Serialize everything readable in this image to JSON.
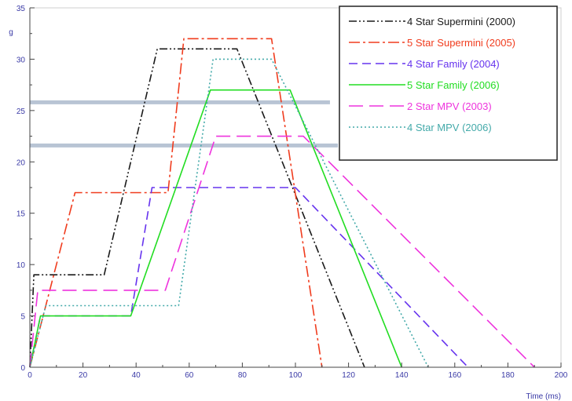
{
  "chart_data": {
    "type": "line",
    "title": "",
    "xlabel": "Time (ms)",
    "ylabel": "g",
    "xlim": [
      0,
      200
    ],
    "ylim": [
      0,
      35
    ],
    "x_ticks": [
      "0",
      "20",
      "40",
      "60",
      "80",
      "100",
      "120",
      "140",
      "160",
      "180",
      "200"
    ],
    "y_ticks": [
      "0",
      "5",
      "10",
      "15",
      "20",
      "25",
      "30",
      "35"
    ],
    "grid": false,
    "legend": "top-right",
    "series": [
      {
        "name": "4 Star Supermini (2000)",
        "color": "#1a1a1a",
        "dash": "dash-dot-dot",
        "points": [
          [
            0,
            0
          ],
          [
            1.5,
            9
          ],
          [
            28,
            9
          ],
          [
            48,
            31
          ],
          [
            78,
            31
          ],
          [
            126,
            0
          ]
        ]
      },
      {
        "name": "5 Star Supermini (2005)",
        "color": "#f03c1e",
        "dash": "dash-dot",
        "points": [
          [
            0,
            0
          ],
          [
            17,
            17
          ],
          [
            52,
            17
          ],
          [
            58,
            32
          ],
          [
            91,
            32
          ],
          [
            110,
            0
          ]
        ]
      },
      {
        "name": "4 Star Family (2004)",
        "color": "#6633ee",
        "dash": "dash",
        "points": [
          [
            0,
            0
          ],
          [
            4,
            5
          ],
          [
            38,
            5
          ],
          [
            46,
            17.5
          ],
          [
            100,
            17.5
          ],
          [
            165,
            0
          ]
        ]
      },
      {
        "name": "5 Star Family (2006)",
        "color": "#22dd22",
        "dash": "solid",
        "points": [
          [
            0,
            0
          ],
          [
            4,
            5
          ],
          [
            38,
            5
          ],
          [
            68,
            27
          ],
          [
            98,
            27
          ],
          [
            140,
            0
          ]
        ]
      },
      {
        "name": "2 Star MPV (2003)",
        "color": "#ee33dd",
        "dash": "long-dash",
        "points": [
          [
            0,
            0
          ],
          [
            3,
            7.5
          ],
          [
            51,
            7.5
          ],
          [
            70,
            22.5
          ],
          [
            103,
            22.5
          ],
          [
            190,
            0
          ]
        ]
      },
      {
        "name": "4 Star MPV (2006)",
        "color": "#44aaaa",
        "dash": "dotted",
        "points": [
          [
            0,
            0
          ],
          [
            6,
            6
          ],
          [
            56,
            6
          ],
          [
            69,
            30
          ],
          [
            91,
            30
          ],
          [
            150,
            0
          ]
        ]
      }
    ],
    "reference_bands": [
      {
        "y": 25.8,
        "x_end": 113,
        "color": "#b8c4d4"
      },
      {
        "y": 21.6,
        "x_end": 116,
        "color": "#b8c4d4"
      }
    ]
  }
}
